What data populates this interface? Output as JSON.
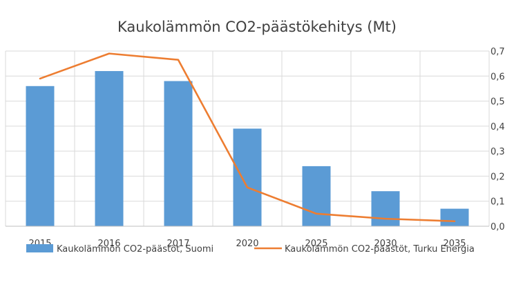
{
  "chart_data": {
    "type": "bar",
    "title": "Kaukolämmön CO2-päästökehitys (Mt)",
    "categories": [
      "2015",
      "2016",
      "2017",
      "2020",
      "2025",
      "2030",
      "2035"
    ],
    "series": [
      {
        "name": "Kaukolämmön CO2-päästöt, Suomi",
        "type": "bar",
        "color": "#5b9bd5",
        "values": [
          5.6,
          6.2,
          5.8,
          3.9,
          2.4,
          1.4,
          0.7
        ]
      },
      {
        "name": "Kaukolämmön CO2-päästöt, Turku Energia",
        "type": "line",
        "color": "#ed7d31",
        "values": [
          0.59,
          0.69,
          0.665,
          0.155,
          0.05,
          0.03,
          0.02
        ]
      }
    ],
    "y_left": {
      "min": 0,
      "max": 7,
      "step": 1
    },
    "y_right": {
      "min": 0,
      "max": 0.7,
      "step": 0.1,
      "tick_labels": [
        "0,0",
        "0,1",
        "0,2",
        "0,3",
        "0,4",
        "0,5",
        "0,6",
        "0,7"
      ]
    },
    "grid": true,
    "legend_position": "bottom"
  }
}
